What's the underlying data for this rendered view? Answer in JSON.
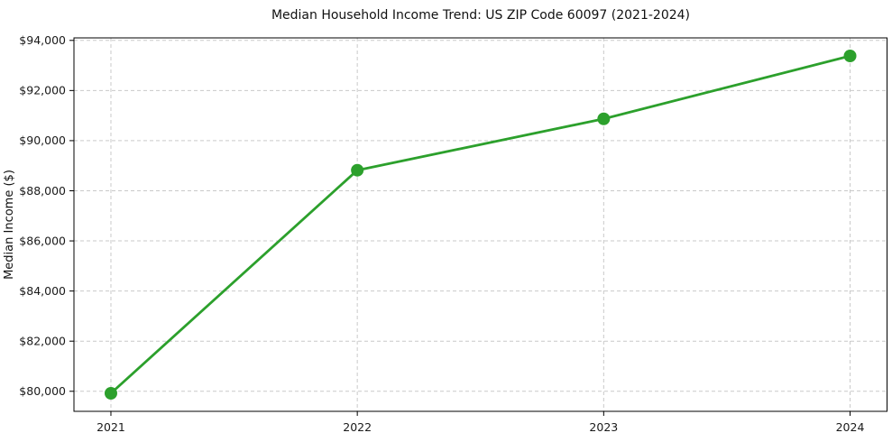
{
  "chart_data": {
    "type": "line",
    "title": "Median Household Income Trend: US ZIP Code 60097 (2021-2024)",
    "xlabel": "",
    "ylabel": "Median Income ($)",
    "x": [
      2021,
      2022,
      2023,
      2024
    ],
    "series": [
      {
        "name": "Median Household Income",
        "values": [
          79920,
          88820,
          90870,
          93380
        ]
      }
    ],
    "xticks": [
      2021,
      2022,
      2023,
      2024
    ],
    "xtick_labels": [
      "2021",
      "2022",
      "2023",
      "2024"
    ],
    "yticks": [
      80000,
      82000,
      84000,
      86000,
      88000,
      90000,
      92000,
      94000
    ],
    "ytick_labels": [
      "$80,000",
      "$82,000",
      "$84,000",
      "$86,000",
      "$88,000",
      "$90,000",
      "$92,000",
      "$94,000"
    ],
    "xlim": [
      2020.85,
      2024.15
    ],
    "ylim": [
      79200,
      94100
    ],
    "grid": true,
    "legend": "none",
    "line_color": "#2ca02c",
    "marker": "circle",
    "background_color": "#ffffff",
    "grid_color": "#c9c9c9",
    "spine_color": "#000000"
  }
}
